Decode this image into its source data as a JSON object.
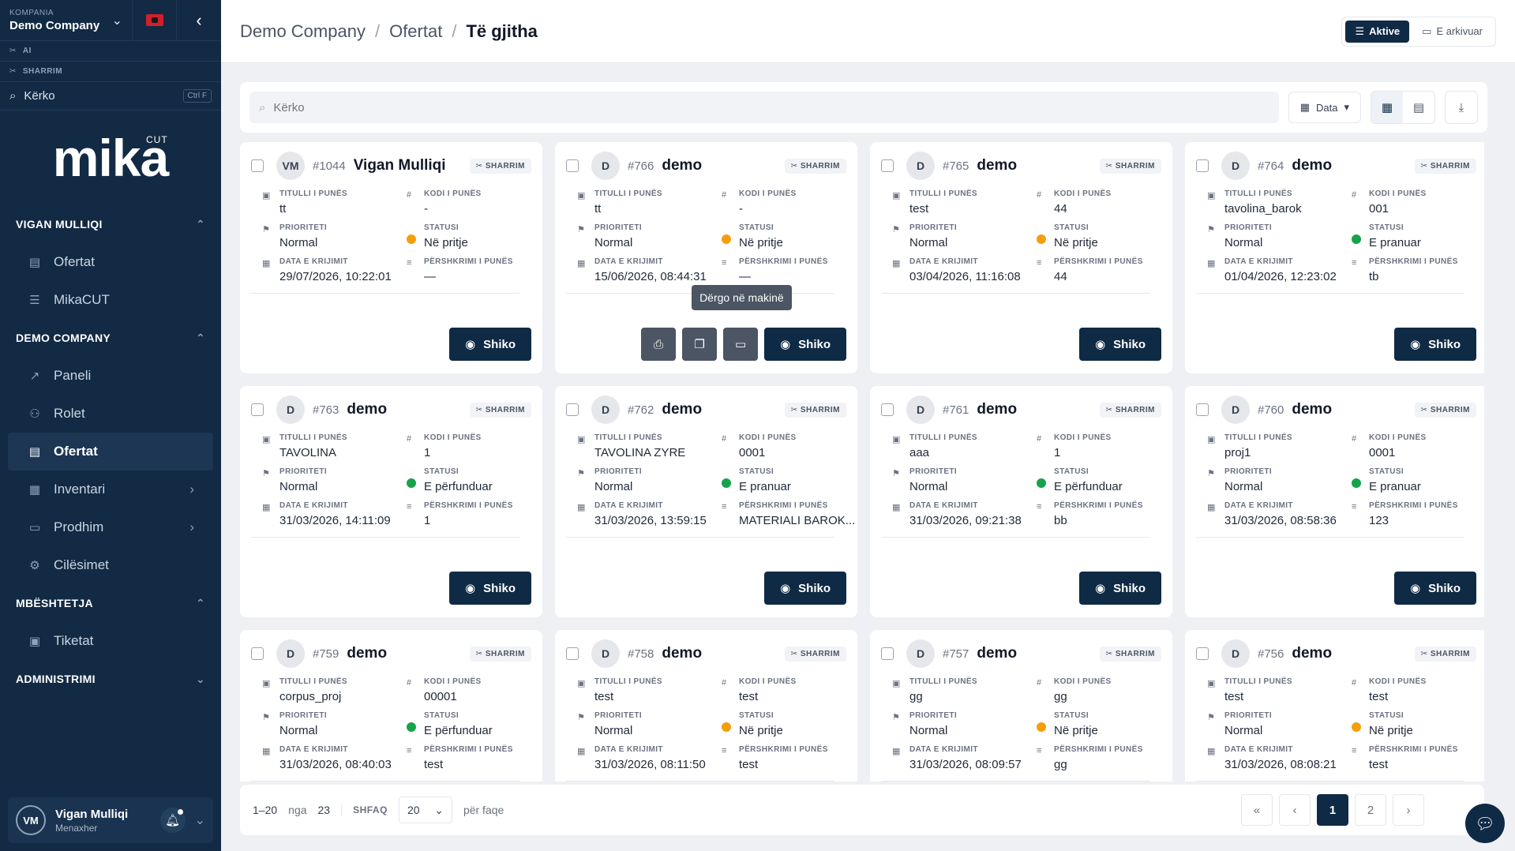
{
  "sidebar": {
    "company_label": "KOMPANIA",
    "company_name": "Demo Company",
    "ai_label": "AI",
    "sharrim_label": "SHARRIM",
    "search_label": "Kërko",
    "search_shortcut": "Ctrl F",
    "logo_text": "mika",
    "logo_cut": "CUT",
    "sections": [
      {
        "title": "VIGAN MULLIQI",
        "items": [
          {
            "label": "Ofertat",
            "icon": "file-icon"
          },
          {
            "label": "MikaCUT",
            "icon": "list-icon"
          }
        ]
      },
      {
        "title": "DEMO COMPANY",
        "items": [
          {
            "label": "Paneli",
            "icon": "chart-icon"
          },
          {
            "label": "Rolet",
            "icon": "users-icon"
          },
          {
            "label": "Ofertat",
            "icon": "file-icon"
          },
          {
            "label": "Inventari",
            "icon": "warehouse-icon"
          },
          {
            "label": "Prodhim",
            "icon": "folder-icon"
          },
          {
            "label": "Cilësimet",
            "icon": "settings-icon"
          }
        ]
      },
      {
        "title": "MBËSHTETJA",
        "items": [
          {
            "label": "Tiketat",
            "icon": "ticket-icon"
          }
        ]
      },
      {
        "title": "ADMINISTRIMI",
        "items": []
      }
    ],
    "user": {
      "initials": "VM",
      "name": "Vigan Mulliqi",
      "role": "Menaxher"
    }
  },
  "header": {
    "crumbs": [
      "Demo Company",
      "Ofertat",
      "Të gjitha"
    ],
    "active_label": "Aktive",
    "archived_label": "E arkivuar"
  },
  "toolbar": {
    "search_placeholder": "Kërko",
    "date_label": "Data"
  },
  "field_labels": {
    "title": "TITULLI I PUNËS",
    "code": "KODI I PUNËS",
    "priority": "PRIORITETI",
    "status": "STATUSI",
    "date": "DATA E KRIJIMIT",
    "desc": "PËRSHKRIMI I PUNËS",
    "view": "Shiko",
    "tag": "SHARRIM",
    "tooltip": "Dërgo në makinë"
  },
  "cards": [
    {
      "initials": "VM",
      "id": "#1044",
      "name": "Vigan Mulliqi",
      "title": "tt",
      "code": "-",
      "priority": "Normal",
      "status": "Në pritje",
      "status_color": "orange",
      "date": "29/07/2026, 10:22:01",
      "desc": "—"
    },
    {
      "initials": "D",
      "id": "#766",
      "name": "demo",
      "title": "tt",
      "code": "-",
      "priority": "Normal",
      "status": "Në pritje",
      "status_color": "orange",
      "date": "15/06/2026, 08:44:31",
      "desc": "—",
      "extra_actions": true
    },
    {
      "initials": "D",
      "id": "#765",
      "name": "demo",
      "title": "test",
      "code": "44",
      "priority": "Normal",
      "status": "Në pritje",
      "status_color": "orange",
      "date": "03/04/2026, 11:16:08",
      "desc": "44"
    },
    {
      "initials": "D",
      "id": "#764",
      "name": "demo",
      "title": "tavolina_barok",
      "code": "001",
      "priority": "Normal",
      "status": "E pranuar",
      "status_color": "green",
      "date": "01/04/2026, 12:23:02",
      "desc": "tb"
    },
    {
      "initials": "D",
      "id": "#763",
      "name": "demo",
      "title": "TAVOLINA",
      "code": "1",
      "priority": "Normal",
      "status": "E përfunduar",
      "status_color": "green",
      "date": "31/03/2026, 14:11:09",
      "desc": "1"
    },
    {
      "initials": "D",
      "id": "#762",
      "name": "demo",
      "title": "TAVOLINA ZYRE",
      "code": "0001",
      "priority": "Normal",
      "status": "E pranuar",
      "status_color": "green",
      "date": "31/03/2026, 13:59:15",
      "desc": "MATERIALI BAROK..."
    },
    {
      "initials": "D",
      "id": "#761",
      "name": "demo",
      "title": "aaa",
      "code": "1",
      "priority": "Normal",
      "status": "E përfunduar",
      "status_color": "green",
      "date": "31/03/2026, 09:21:38",
      "desc": "bb"
    },
    {
      "initials": "D",
      "id": "#760",
      "name": "demo",
      "title": "proj1",
      "code": "0001",
      "priority": "Normal",
      "status": "E pranuar",
      "status_color": "green",
      "date": "31/03/2026, 08:58:36",
      "desc": "123"
    },
    {
      "initials": "D",
      "id": "#759",
      "name": "demo",
      "title": "corpus_proj",
      "code": "00001",
      "priority": "Normal",
      "status": "E përfunduar",
      "status_color": "green",
      "date": "31/03/2026, 08:40:03",
      "desc": "test"
    },
    {
      "initials": "D",
      "id": "#758",
      "name": "demo",
      "title": "test",
      "code": "test",
      "priority": "Normal",
      "status": "Në pritje",
      "status_color": "orange",
      "date": "31/03/2026, 08:11:50",
      "desc": "test"
    },
    {
      "initials": "D",
      "id": "#757",
      "name": "demo",
      "title": "gg",
      "code": "gg",
      "priority": "Normal",
      "status": "Në pritje",
      "status_color": "orange",
      "date": "31/03/2026, 08:09:57",
      "desc": "gg"
    },
    {
      "initials": "D",
      "id": "#756",
      "name": "demo",
      "title": "test",
      "code": "test",
      "priority": "Normal",
      "status": "Në pritje",
      "status_color": "orange",
      "date": "31/03/2026, 08:08:21",
      "desc": "test"
    }
  ],
  "pagination": {
    "range": "1–20",
    "of": "nga",
    "total": "23",
    "show_label": "SHFAQ",
    "per_page": "20",
    "per_page_suffix": "për faqe",
    "pages": [
      "1",
      "2"
    ]
  }
}
